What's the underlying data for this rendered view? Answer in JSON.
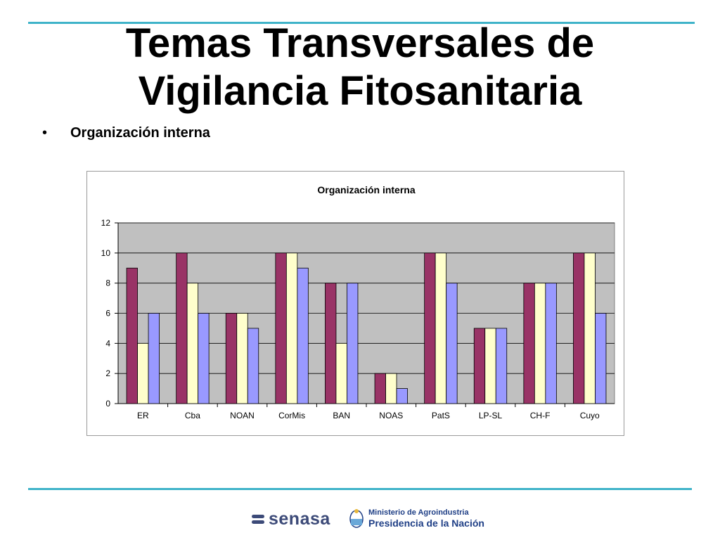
{
  "slide": {
    "title_line1": "Temas Transversales de",
    "title_line2": "Vigilancia Fitosanitaria",
    "bullet_glyph": "•",
    "bullet_text": "Organización interna"
  },
  "footer": {
    "senasa_text": "senasa",
    "ministry_line1": "Ministerio de Agroindustria",
    "ministry_line2": "Presidencia de la Nación"
  },
  "chart_data": {
    "type": "bar",
    "title": "Organización interna",
    "xlabel": "",
    "ylabel": "",
    "ylim": [
      0,
      12
    ],
    "yticks": [
      0,
      2,
      4,
      6,
      8,
      10,
      12
    ],
    "grid": true,
    "legend": "none",
    "categories": [
      "ER",
      "Cba",
      "NOAN",
      "CorMis",
      "BAN",
      "NOAS",
      "PatS",
      "LP-SL",
      "CH-F",
      "Cuyo"
    ],
    "series": [
      {
        "color": "#993366",
        "values": [
          9,
          10,
          6,
          10,
          8,
          2,
          10,
          5,
          8,
          10
        ]
      },
      {
        "color": "#ffffcc",
        "values": [
          4,
          8,
          6,
          10,
          4,
          2,
          10,
          5,
          8,
          10
        ]
      },
      {
        "color": "#9999ff",
        "values": [
          6,
          6,
          5,
          9,
          8,
          1,
          8,
          5,
          8,
          6
        ]
      }
    ],
    "plot_background": "#c0c0c0"
  }
}
